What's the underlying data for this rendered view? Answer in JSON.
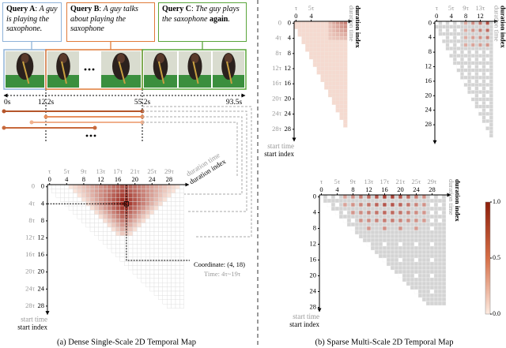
{
  "queries": [
    {
      "label": "Query A",
      "text": "A guy is playing the saxophone."
    },
    {
      "label": "Query B",
      "text": "A guy talks about playing the saxophone"
    },
    {
      "label": "Query C",
      "text": "The guy plays the saxophone ",
      "emph": "again",
      "end": "."
    }
  ],
  "timeline": [
    "0s",
    "12.2s",
    "55.2s",
    "93.5s"
  ],
  "panel_a": {
    "duration_time_label": "duration time",
    "duration_index_label": "duration index",
    "start_time_label": "start time",
    "start_index_label": "start index",
    "duration_time_ticks": [
      "τ",
      "5τ",
      "9τ",
      "13τ",
      "17τ",
      "21τ",
      "25τ",
      "29τ"
    ],
    "duration_index_ticks": [
      0,
      4,
      8,
      12,
      16,
      20,
      24,
      28
    ],
    "start_time_ticks": [
      "0",
      "4τ",
      "8τ",
      "12τ",
      "16τ",
      "20τ",
      "24τ",
      "28τ"
    ],
    "start_index_ticks": [
      0,
      4,
      8,
      12,
      16,
      20,
      24,
      28
    ],
    "coordinate": "Coordinate: (4, 18)",
    "time": "Time: 4τ~19τ",
    "caption": "(a) Dense Single-Scale 2D Temporal Map"
  },
  "panel_b": {
    "duration_time_label": "duration time",
    "duration_index_label": "duration index",
    "start_time_label": "start time",
    "start_index_label": "start index",
    "maps": [
      {
        "duration_time_ticks": [
          "τ",
          "5τ"
        ],
        "duration_index_ticks": [
          0,
          4
        ],
        "start_time_ticks": [
          "0",
          "4τ",
          "8τ",
          "12τ",
          "16τ",
          "20τ",
          "24τ",
          "28τ"
        ],
        "start_index_ticks": [
          0,
          4,
          8,
          12,
          16,
          20,
          24,
          28
        ]
      },
      {
        "duration_time_ticks": [
          "τ",
          "5τ",
          "9τ",
          "13τ"
        ],
        "duration_index_ticks": [
          0,
          4,
          8,
          12
        ],
        "start_index_ticks": [
          0,
          4,
          8,
          12,
          16,
          20,
          24,
          28
        ]
      },
      {
        "duration_time_ticks": [
          "τ",
          "5τ",
          "9τ",
          "13τ",
          "17τ",
          "21τ",
          "25τ",
          "29τ"
        ],
        "duration_index_ticks": [
          0,
          4,
          8,
          12,
          16,
          20,
          24,
          28
        ],
        "start_index_ticks": [
          0,
          4,
          8,
          12,
          16,
          20,
          24,
          28
        ]
      }
    ],
    "colorbar_ticks": [
      {
        "value": 1.0,
        "label": "1.0"
      },
      {
        "value": 0.5,
        "label": "0.5"
      },
      {
        "value": 0.0,
        "label": "0.0"
      }
    ],
    "caption": "(b) Sparse Multi-Scale 2D Temporal Map"
  }
}
